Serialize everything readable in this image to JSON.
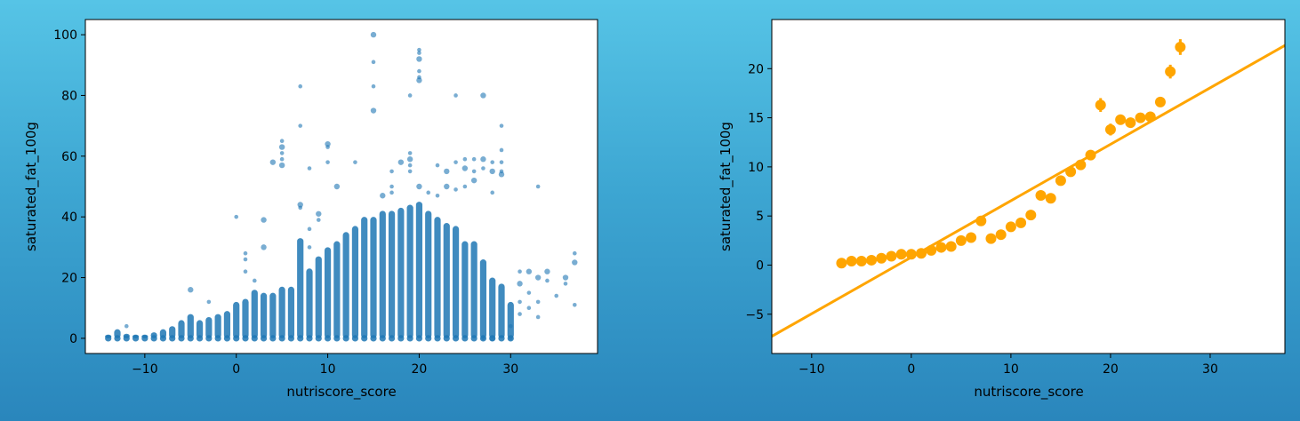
{
  "chart_data": [
    {
      "type": "scatter",
      "xlabel": "nutriscore_score",
      "ylabel": "saturated_fat_100g",
      "xlim": [
        -16.5,
        39.5
      ],
      "ylim": [
        -5,
        105
      ],
      "x_ticks": [
        -10,
        0,
        10,
        20,
        30
      ],
      "y_ticks": [
        0,
        20,
        40,
        60,
        80,
        100
      ],
      "color": "#1f77b4",
      "columns": [
        {
          "x": -14,
          "ymax": 1.2
        },
        {
          "x": -13,
          "ymax": 3
        },
        {
          "x": -12,
          "ymax": 1.5
        },
        {
          "x": -11,
          "ymax": 1.2
        },
        {
          "x": -10,
          "ymax": 1.2
        },
        {
          "x": -9,
          "ymax": 2
        },
        {
          "x": -8,
          "ymax": 3
        },
        {
          "x": -7,
          "ymax": 4
        },
        {
          "x": -6,
          "ymax": 6
        },
        {
          "x": -5,
          "ymax": 8
        },
        {
          "x": -4,
          "ymax": 6
        },
        {
          "x": -3,
          "ymax": 7
        },
        {
          "x": -2,
          "ymax": 8
        },
        {
          "x": -1,
          "ymax": 9
        },
        {
          "x": 0,
          "ymax": 12
        },
        {
          "x": 1,
          "ymax": 13
        },
        {
          "x": 2,
          "ymax": 16
        },
        {
          "x": 3,
          "ymax": 15
        },
        {
          "x": 4,
          "ymax": 15
        },
        {
          "x": 5,
          "ymax": 17
        },
        {
          "x": 6,
          "ymax": 17
        },
        {
          "x": 7,
          "ymax": 33
        },
        {
          "x": 8,
          "ymax": 23
        },
        {
          "x": 9,
          "ymax": 27
        },
        {
          "x": 10,
          "ymax": 30
        },
        {
          "x": 11,
          "ymax": 32
        },
        {
          "x": 12,
          "ymax": 35
        },
        {
          "x": 13,
          "ymax": 37
        },
        {
          "x": 14,
          "ymax": 40
        },
        {
          "x": 15,
          "ymax": 40
        },
        {
          "x": 16,
          "ymax": 42
        },
        {
          "x": 17,
          "ymax": 42
        },
        {
          "x": 18,
          "ymax": 43
        },
        {
          "x": 19,
          "ymax": 44
        },
        {
          "x": 20,
          "ymax": 45
        },
        {
          "x": 21,
          "ymax": 42
        },
        {
          "x": 22,
          "ymax": 40
        },
        {
          "x": 23,
          "ymax": 38
        },
        {
          "x": 24,
          "ymax": 37
        },
        {
          "x": 25,
          "ymax": 32
        },
        {
          "x": 26,
          "ymax": 32
        },
        {
          "x": 27,
          "ymax": 26
        },
        {
          "x": 28,
          "ymax": 20
        },
        {
          "x": 29,
          "ymax": 18
        },
        {
          "x": 30,
          "ymax": 12
        }
      ],
      "outliers": [
        {
          "x": 15,
          "y": 100
        },
        {
          "x": 15,
          "y": 91
        },
        {
          "x": 15,
          "y": 83
        },
        {
          "x": 15,
          "y": 75
        },
        {
          "x": 20,
          "y": 95
        },
        {
          "x": 20,
          "y": 94
        },
        {
          "x": 20,
          "y": 92
        },
        {
          "x": 20,
          "y": 88
        },
        {
          "x": 20,
          "y": 86
        },
        {
          "x": 20,
          "y": 85
        },
        {
          "x": 19,
          "y": 80
        },
        {
          "x": 24,
          "y": 80
        },
        {
          "x": 27,
          "y": 80
        },
        {
          "x": 7,
          "y": 83
        },
        {
          "x": 7,
          "y": 70
        },
        {
          "x": 10,
          "y": 64
        },
        {
          "x": 10,
          "y": 63
        },
        {
          "x": 5,
          "y": 65
        },
        {
          "x": 5,
          "y": 63
        },
        {
          "x": 5,
          "y": 61
        },
        {
          "x": 5,
          "y": 59
        },
        {
          "x": 5,
          "y": 57
        },
        {
          "x": 29,
          "y": 70
        },
        {
          "x": 29,
          "y": 62
        },
        {
          "x": 4,
          "y": 58
        },
        {
          "x": 8,
          "y": 56
        },
        {
          "x": 10,
          "y": 58
        },
        {
          "x": 11,
          "y": 50
        },
        {
          "x": 13,
          "y": 58
        },
        {
          "x": 19,
          "y": 61
        },
        {
          "x": 19,
          "y": 59
        },
        {
          "x": 19,
          "y": 57
        },
        {
          "x": 19,
          "y": 55
        },
        {
          "x": 18,
          "y": 58
        },
        {
          "x": 17,
          "y": 55
        },
        {
          "x": 22,
          "y": 57
        },
        {
          "x": 23,
          "y": 55
        },
        {
          "x": 24,
          "y": 58
        },
        {
          "x": 25,
          "y": 59
        },
        {
          "x": 25,
          "y": 56
        },
        {
          "x": 26,
          "y": 59
        },
        {
          "x": 26,
          "y": 55
        },
        {
          "x": 27,
          "y": 59
        },
        {
          "x": 27,
          "y": 56
        },
        {
          "x": 28,
          "y": 58
        },
        {
          "x": 28,
          "y": 55
        },
        {
          "x": 29,
          "y": 58
        },
        {
          "x": 29,
          "y": 55
        },
        {
          "x": 29,
          "y": 54
        },
        {
          "x": 33,
          "y": 50
        },
        {
          "x": 0,
          "y": 40
        },
        {
          "x": 3,
          "y": 39
        },
        {
          "x": 1,
          "y": 28
        },
        {
          "x": 1,
          "y": 26
        },
        {
          "x": 3,
          "y": 30
        },
        {
          "x": 1,
          "y": 22
        },
        {
          "x": 2,
          "y": 19
        },
        {
          "x": 9,
          "y": 41
        },
        {
          "x": 9,
          "y": 39
        },
        {
          "x": 7,
          "y": 43
        },
        {
          "x": 7,
          "y": 44
        },
        {
          "x": 8,
          "y": 36
        },
        {
          "x": 8,
          "y": 30
        },
        {
          "x": 16,
          "y": 47
        },
        {
          "x": 17,
          "y": 50
        },
        {
          "x": 17,
          "y": 48
        },
        {
          "x": 20,
          "y": 50
        },
        {
          "x": 21,
          "y": 48
        },
        {
          "x": 22,
          "y": 47
        },
        {
          "x": 23,
          "y": 50
        },
        {
          "x": 24,
          "y": 49
        },
        {
          "x": 25,
          "y": 50
        },
        {
          "x": 26,
          "y": 52
        },
        {
          "x": 28,
          "y": 48
        },
        {
          "x": 31,
          "y": 22
        },
        {
          "x": 31,
          "y": 18
        },
        {
          "x": 31,
          "y": 12
        },
        {
          "x": 31,
          "y": 8
        },
        {
          "x": 32,
          "y": 22
        },
        {
          "x": 32,
          "y": 15
        },
        {
          "x": 32,
          "y": 10
        },
        {
          "x": 33,
          "y": 20
        },
        {
          "x": 33,
          "y": 12
        },
        {
          "x": 33,
          "y": 7
        },
        {
          "x": 34,
          "y": 22
        },
        {
          "x": 34,
          "y": 19
        },
        {
          "x": 35,
          "y": 14
        },
        {
          "x": 36,
          "y": 20
        },
        {
          "x": 36,
          "y": 18
        },
        {
          "x": 37,
          "y": 28
        },
        {
          "x": 37,
          "y": 25
        },
        {
          "x": 37,
          "y": 11
        },
        {
          "x": 30,
          "y": 4
        },
        {
          "x": 28,
          "y": 0
        },
        {
          "x": 30,
          "y": 0
        },
        {
          "x": 27,
          "y": 0
        },
        {
          "x": -5,
          "y": 16
        },
        {
          "x": -3,
          "y": 12
        },
        {
          "x": -12,
          "y": 4
        }
      ]
    },
    {
      "type": "line",
      "xlabel": "nutriscore_score",
      "ylabel": "saturated_fat_100g",
      "xlim": [
        -14,
        37.5
      ],
      "ylim": [
        -9,
        25
      ],
      "x_ticks": [
        -10,
        0,
        10,
        20,
        30
      ],
      "y_ticks": [
        -5,
        0,
        5,
        10,
        15,
        20
      ],
      "color": "#ffa500",
      "points": [
        {
          "x": -7,
          "y": 0.2
        },
        {
          "x": -6,
          "y": 0.4
        },
        {
          "x": -5,
          "y": 0.4
        },
        {
          "x": -4,
          "y": 0.5
        },
        {
          "x": -3,
          "y": 0.7
        },
        {
          "x": -2,
          "y": 0.9
        },
        {
          "x": -1,
          "y": 1.1
        },
        {
          "x": 0,
          "y": 1.1
        },
        {
          "x": 1,
          "y": 1.2
        },
        {
          "x": 2,
          "y": 1.5
        },
        {
          "x": 3,
          "y": 1.8
        },
        {
          "x": 4,
          "y": 1.9
        },
        {
          "x": 5,
          "y": 2.5
        },
        {
          "x": 6,
          "y": 2.8
        },
        {
          "x": 7,
          "y": 4.5
        },
        {
          "x": 8,
          "y": 2.7
        },
        {
          "x": 9,
          "y": 3.1
        },
        {
          "x": 10,
          "y": 3.9
        },
        {
          "x": 11,
          "y": 4.3
        },
        {
          "x": 12,
          "y": 5.1
        },
        {
          "x": 13,
          "y": 7.1
        },
        {
          "x": 14,
          "y": 6.8
        },
        {
          "x": 15,
          "y": 8.6
        },
        {
          "x": 16,
          "y": 9.5
        },
        {
          "x": 17,
          "y": 10.2
        },
        {
          "x": 18,
          "y": 11.2
        },
        {
          "x": 19,
          "y": 16.3
        },
        {
          "x": 20,
          "y": 13.8
        },
        {
          "x": 21,
          "y": 14.8
        },
        {
          "x": 22,
          "y": 14.5
        },
        {
          "x": 23,
          "y": 15.0
        },
        {
          "x": 24,
          "y": 15.1
        },
        {
          "x": 25,
          "y": 16.6
        },
        {
          "x": 26,
          "y": 19.7
        },
        {
          "x": 27,
          "y": 22.2
        }
      ],
      "errors": [
        0.1,
        0.1,
        0.1,
        0.1,
        0.1,
        0.1,
        0.1,
        0.1,
        0.1,
        0.1,
        0.1,
        0.1,
        0.2,
        0.2,
        0.3,
        0.2,
        0.2,
        0.2,
        0.2,
        0.2,
        0.3,
        0.3,
        0.3,
        0.3,
        0.3,
        0.4,
        0.7,
        0.6,
        0.5,
        0.5,
        0.5,
        0.5,
        0.5,
        0.7,
        0.8
      ],
      "regression_line": {
        "slope": 0.575,
        "intercept": 0.8
      }
    }
  ]
}
